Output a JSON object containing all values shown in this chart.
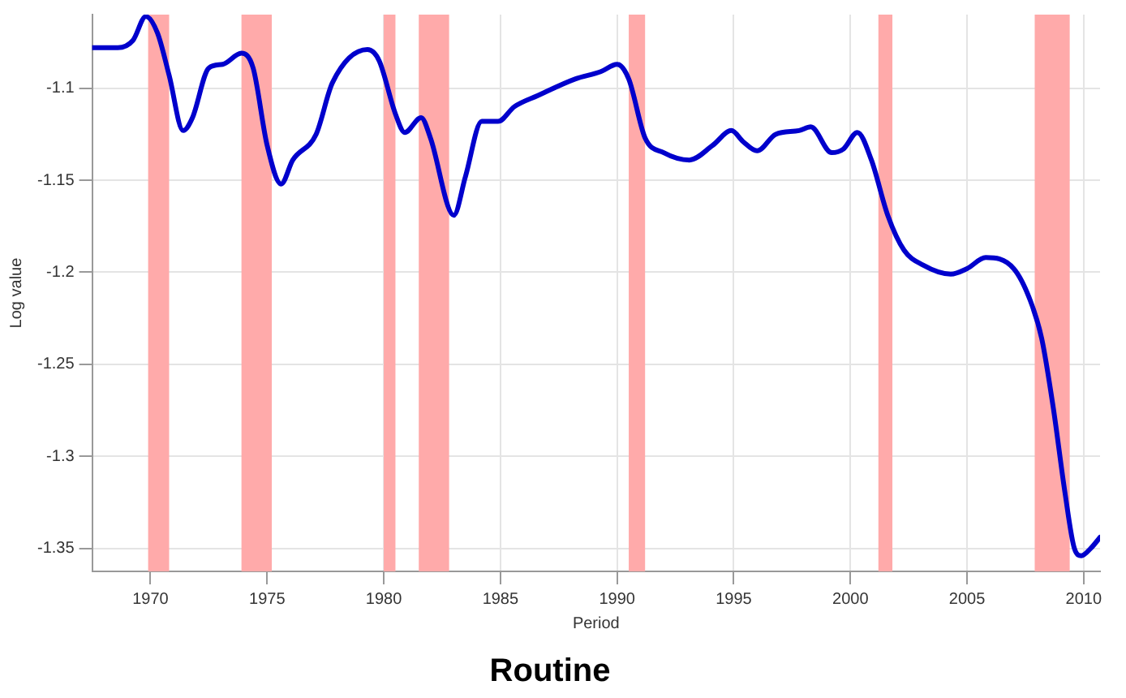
{
  "chart_data": {
    "type": "line",
    "title": "Routine",
    "xlabel": "Period",
    "ylabel": "Log value",
    "x": [
      1967.5,
      1968.6,
      1969.25,
      1969.8,
      1970.3,
      1970.8,
      1971.4,
      1971.8,
      1972.5,
      1973.1,
      1973.9,
      1974.4,
      1975.0,
      1975.6,
      1976.1,
      1977.1,
      1977.8,
      1979.3,
      1979.8,
      1980.5,
      1980.9,
      1981.6,
      1982.0,
      1983.0,
      1983.5,
      1984.2,
      1984.9,
      1985.6,
      1986.6,
      1988.2,
      1989.3,
      1990.0,
      1990.5,
      1991.2,
      1992.0,
      1993.1,
      1994.1,
      1994.9,
      1995.4,
      1996.0,
      1996.8,
      1997.8,
      1998.3,
      1999.2,
      1999.7,
      2000.3,
      2000.9,
      2001.6,
      2002.3,
      2003.1,
      2004.3,
      2005.0,
      2005.8,
      2007.0,
      2007.7,
      2008.2,
      2008.7,
      2009.2,
      2009.6,
      2009.9,
      2010.3,
      2010.7
    ],
    "series": [
      {
        "color": "#0000cc",
        "values": [
          -1.078,
          -1.078,
          -1.074,
          -1.061,
          -1.07,
          -1.093,
          -1.123,
          -1.116,
          -1.089,
          -1.087,
          -1.081,
          -1.089,
          -1.131,
          -1.152,
          -1.139,
          -1.125,
          -1.097,
          -1.079,
          -1.085,
          -1.114,
          -1.124,
          -1.116,
          -1.127,
          -1.169,
          -1.148,
          -1.118,
          -1.118,
          -1.11,
          -1.104,
          -1.095,
          -1.091,
          -1.087,
          -1.095,
          -1.127,
          -1.135,
          -1.139,
          -1.131,
          -1.123,
          -1.129,
          -1.134,
          -1.125,
          -1.123,
          -1.121,
          -1.135,
          -1.133,
          -1.124,
          -1.139,
          -1.169,
          -1.188,
          -1.196,
          -1.201,
          -1.198,
          -1.192,
          -1.198,
          -1.215,
          -1.236,
          -1.274,
          -1.32,
          -1.35,
          -1.354,
          -1.35,
          -1.344
        ]
      }
    ],
    "xlim": [
      1967.5,
      2010.7
    ],
    "xticks": [
      1970,
      1975,
      1980,
      1985,
      1990,
      1995,
      2000,
      2005,
      2010
    ],
    "ylim": [
      -1.3625,
      -1.06
    ],
    "yticks": [
      -1.35,
      -1.3,
      -1.25,
      -1.2,
      -1.15,
      -1.1
    ],
    "bands": [
      {
        "axis": "x",
        "from": 1969.9,
        "to": 1970.8,
        "color": "#ffaaaa"
      },
      {
        "axis": "x",
        "from": 1973.9,
        "to": 1975.2,
        "color": "#ffaaaa"
      },
      {
        "axis": "x",
        "from": 1980.0,
        "to": 1980.5,
        "color": "#ffaaaa"
      },
      {
        "axis": "x",
        "from": 1981.5,
        "to": 1982.8,
        "color": "#ffaaaa"
      },
      {
        "axis": "x",
        "from": 1990.5,
        "to": 1991.2,
        "color": "#ffaaaa"
      },
      {
        "axis": "x",
        "from": 2001.2,
        "to": 2001.8,
        "color": "#ffaaaa"
      },
      {
        "axis": "x",
        "from": 2007.9,
        "to": 2009.4,
        "color": "#ffaaaa"
      }
    ],
    "grid": true,
    "legend": false,
    "marker": "none",
    "line_style": "solid"
  }
}
